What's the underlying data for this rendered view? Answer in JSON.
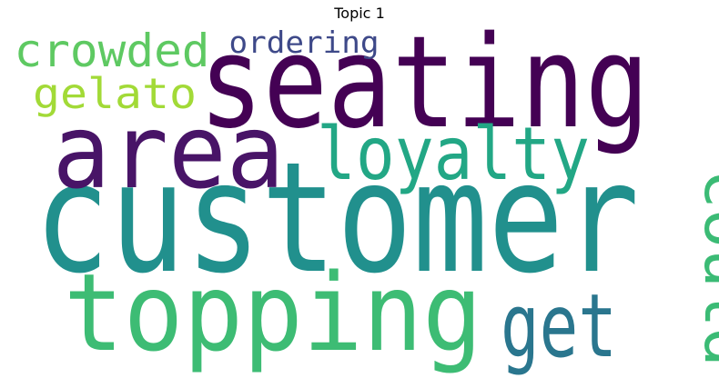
{
  "title": "Topic 1",
  "words": [
    {
      "text": "customer",
      "color": "#21908d"
    },
    {
      "text": "seating",
      "color": "#440154"
    },
    {
      "text": "area",
      "color": "#481467"
    },
    {
      "text": "topping",
      "color": "#3dbc74"
    },
    {
      "text": "loyalty",
      "color": "#22a785"
    },
    {
      "text": "get",
      "color": "#2a768e"
    },
    {
      "text": "could",
      "color": "#3bbb75"
    },
    {
      "text": "crowded",
      "color": "#5ec962"
    },
    {
      "text": "gelato",
      "color": "#a2da37"
    },
    {
      "text": "ordering",
      "color": "#3e4989"
    }
  ]
}
